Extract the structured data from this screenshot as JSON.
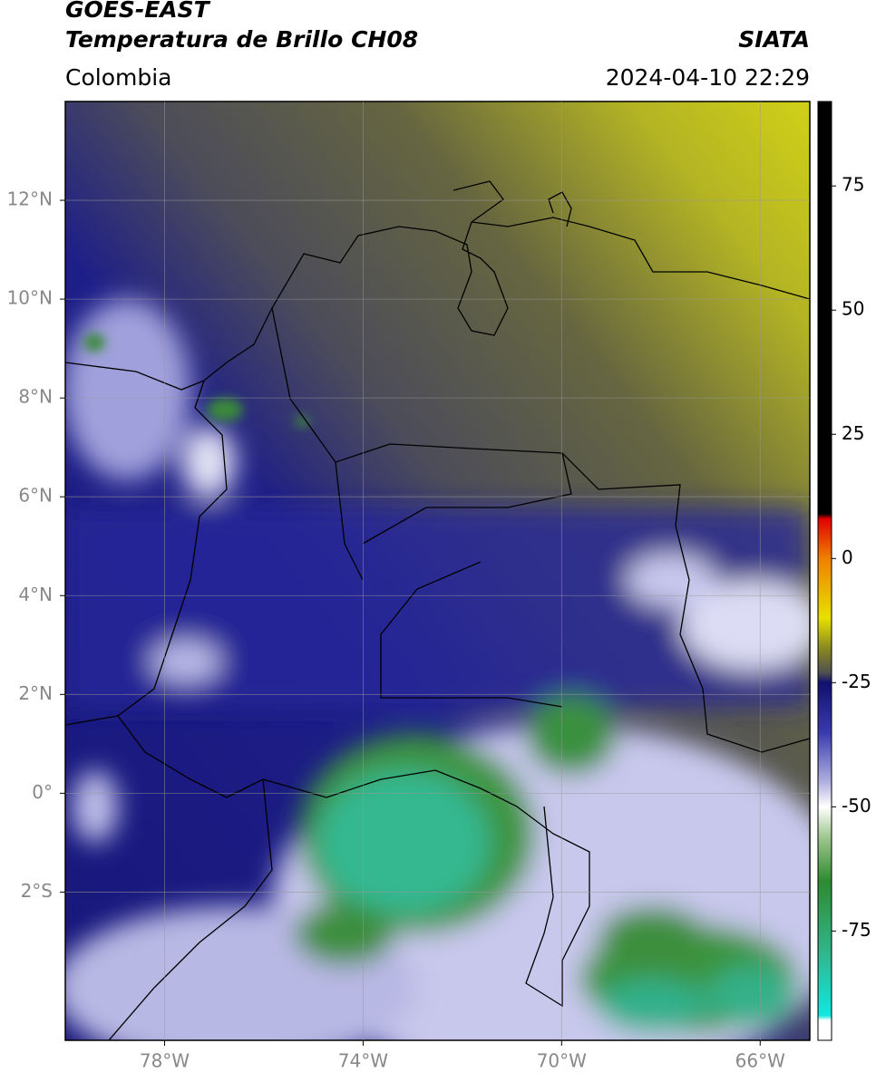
{
  "header": {
    "title": "GOES-EAST",
    "subtitle": "Temperatura de Brillo CH08",
    "region": "Colombia",
    "source": "SIATA",
    "datetime": "2024-04-10 22:29"
  },
  "map": {
    "lonlim": [
      -80,
      -65
    ],
    "latlim": [
      -5,
      14
    ],
    "lonticks": [
      {
        "value": -78,
        "label": "78°W"
      },
      {
        "value": -74,
        "label": "74°W"
      },
      {
        "value": -70,
        "label": "70°W"
      },
      {
        "value": -66,
        "label": "66°W"
      }
    ],
    "latticks": [
      {
        "value": 12,
        "label": "12°N"
      },
      {
        "value": 10,
        "label": "10°N"
      },
      {
        "value": 8,
        "label": "8°N"
      },
      {
        "value": 6,
        "label": "6°N"
      },
      {
        "value": 4,
        "label": "4°N"
      },
      {
        "value": 2,
        "label": "2°N"
      },
      {
        "value": 0,
        "label": "0°"
      },
      {
        "value": -2,
        "label": "2°S"
      }
    ],
    "grid": true
  },
  "colorbar": {
    "vlim": [
      -97,
      92
    ],
    "ticks": [
      75,
      50,
      25,
      0,
      -25,
      -50,
      -75
    ],
    "stops": [
      {
        "value": 92,
        "color": "#000000"
      },
      {
        "value": 9,
        "color": "#000000"
      },
      {
        "value": 8,
        "color": "#e00000"
      },
      {
        "value": 0,
        "color": "#f08000"
      },
      {
        "value": -12,
        "color": "#e8e000"
      },
      {
        "value": -18,
        "color": "#8a8a20"
      },
      {
        "value": -23,
        "color": "#505050"
      },
      {
        "value": -25,
        "color": "#10106e"
      },
      {
        "value": -35,
        "color": "#3a3ab0"
      },
      {
        "value": -45,
        "color": "#b0b0e0"
      },
      {
        "value": -50,
        "color": "#ffffff"
      },
      {
        "value": -56,
        "color": "#a0c890"
      },
      {
        "value": -65,
        "color": "#2e8a30"
      },
      {
        "value": -80,
        "color": "#30b890"
      },
      {
        "value": -92,
        "color": "#10e8e0"
      },
      {
        "value": -93,
        "color": "#ffffff"
      },
      {
        "value": -97,
        "color": "#ffffff"
      }
    ]
  }
}
